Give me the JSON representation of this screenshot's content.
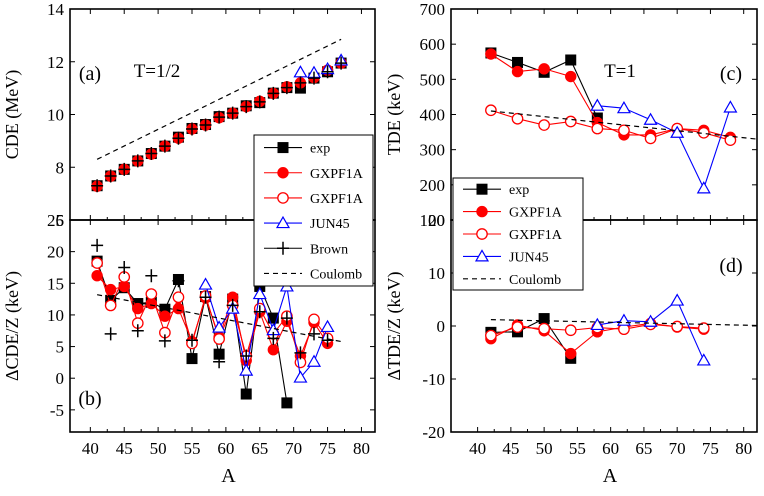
{
  "chart_data": [
    {
      "id": "a",
      "type": "scatter",
      "panel_label": "(a)",
      "annotation": "T=1/2",
      "ylabel": "CDE (MeV)",
      "xlabel": "",
      "xlim": [
        37,
        82
      ],
      "ylim": [
        6,
        14
      ],
      "xticks": [
        40,
        45,
        50,
        55,
        60,
        65,
        70,
        75,
        80
      ],
      "yticks": [
        6,
        8,
        10,
        12,
        14
      ],
      "show_xtick_labels": false,
      "series": [
        {
          "name": "exp",
          "color": "#000000",
          "marker": "square-filled",
          "line": "none",
          "x": [
            41,
            43,
            45,
            47,
            49,
            51,
            53,
            55,
            57,
            59,
            61,
            63,
            65,
            67,
            69,
            71,
            73,
            75,
            77
          ],
          "y": [
            7.3,
            7.67,
            7.92,
            8.24,
            8.52,
            8.8,
            9.14,
            9.47,
            9.62,
            9.92,
            10.05,
            10.33,
            10.45,
            10.81,
            11.02,
            11.0,
            11.38,
            11.62,
            11.95
          ]
        },
        {
          "name": "GXPF1A",
          "color": "#ff0000",
          "marker": "circle-filled",
          "line": "none",
          "x": [
            41,
            43,
            45,
            47,
            49,
            51,
            53,
            55,
            57,
            59,
            61,
            63,
            65,
            67,
            69,
            71,
            73,
            75,
            77
          ],
          "y": [
            7.28,
            7.66,
            7.92,
            8.24,
            8.5,
            8.8,
            9.1,
            9.45,
            9.6,
            9.88,
            10.05,
            10.3,
            10.5,
            10.8,
            11.05,
            11.2,
            11.4,
            11.68,
            11.95
          ]
        },
        {
          "name": "JUN45",
          "color": "#0000ff",
          "marker": "triangle-open",
          "line": "none",
          "x": [
            71,
            73,
            75,
            77
          ],
          "y": [
            11.6,
            11.58,
            11.72,
            12.05
          ]
        },
        {
          "name": "Brown",
          "color": "#000000",
          "marker": "plus",
          "line": "none",
          "x": [
            41,
            43,
            45,
            47,
            49,
            51,
            53,
            55,
            57,
            59,
            61,
            63,
            65,
            67,
            69,
            71,
            73,
            75,
            77
          ],
          "y": [
            7.3,
            7.67,
            7.92,
            8.24,
            8.52,
            8.8,
            9.1,
            9.45,
            9.6,
            9.9,
            10.05,
            10.3,
            10.48,
            10.8,
            11.02,
            11.2,
            11.38,
            11.62,
            11.95
          ]
        },
        {
          "name": "Coulomb",
          "color": "#000000",
          "marker": "none",
          "line": "dashed",
          "x": [
            41,
            77
          ],
          "y": [
            8.3,
            12.85
          ]
        }
      ]
    },
    {
      "id": "b",
      "type": "line",
      "panel_label": "(b)",
      "ylabel": "ΔCDE/Z  (keV)",
      "xlabel": "A",
      "xlim": [
        37,
        82
      ],
      "ylim": [
        -8.5,
        25
      ],
      "xticks": [
        40,
        45,
        50,
        55,
        60,
        65,
        70,
        75,
        80
      ],
      "yticks": [
        -5,
        0,
        5,
        10,
        15,
        20,
        25
      ],
      "show_xtick_labels": true,
      "legend": [
        "exp",
        "GXPF1A",
        "GXPF1A",
        "JUN45",
        "Brown",
        "Coulomb"
      ],
      "legend_position": "top-right",
      "series": [
        {
          "name": "exp",
          "color": "#000000",
          "marker": "square-filled",
          "line": "solid",
          "x": [
            41,
            43,
            45,
            47,
            49,
            51,
            53,
            55,
            57,
            59,
            61,
            63,
            65,
            67,
            69
          ],
          "y": [
            18.5,
            12.3,
            14.3,
            11.8,
            12.0,
            10.9,
            15.6,
            3.1,
            12.9,
            3.8,
            12.5,
            -2.5,
            14.5,
            9.5,
            -3.9
          ]
        },
        {
          "name": "GXPF1A",
          "color": "#ff0000",
          "marker": "circle-filled",
          "line": "solid",
          "x": [
            41,
            43,
            45,
            47,
            49,
            51,
            53,
            55,
            57,
            59,
            61,
            63,
            65,
            67,
            69,
            71,
            73,
            75
          ],
          "y": [
            16.2,
            14.0,
            14.5,
            11.0,
            11.8,
            9.8,
            11.0,
            5.8,
            12.7,
            6.5,
            12.8,
            2.8,
            10.5,
            4.5,
            9.0,
            3.5,
            8.8,
            5.5
          ]
        },
        {
          "name": "GXPF1A",
          "color": "#ff0000",
          "marker": "circle-open",
          "line": "solid",
          "x": [
            41,
            43,
            45,
            47,
            49,
            51,
            53,
            55,
            57,
            59,
            61,
            63,
            65,
            67,
            69,
            71,
            73,
            75
          ],
          "y": [
            18.2,
            11.5,
            16.0,
            8.7,
            13.3,
            7.2,
            12.8,
            5.5,
            13.0,
            6.2,
            11.5,
            3.5,
            11.0,
            7.0,
            9.8,
            2.5,
            9.3,
            6.3
          ]
        },
        {
          "name": "JUN45",
          "color": "#0000ff",
          "marker": "triangle-open",
          "line": "solid",
          "x": [
            57,
            59,
            61,
            63,
            65,
            67,
            69,
            71,
            73,
            75
          ],
          "y": [
            14.8,
            8.0,
            11.0,
            1.2,
            13.3,
            7.6,
            14.5,
            0.1,
            2.6,
            8.1
          ]
        },
        {
          "name": "Brown",
          "color": "#000000",
          "marker": "plus",
          "line": "none",
          "x": [
            41,
            43,
            45,
            47,
            49,
            51,
            53,
            55,
            57,
            59,
            61,
            63,
            65,
            67,
            69,
            71,
            73,
            75
          ],
          "y": [
            21.0,
            7.0,
            17.5,
            7.5,
            16.2,
            5.9,
            15.4,
            6.0,
            12.8,
            2.6,
            11.5,
            3.5,
            10.5,
            6.3,
            9.5,
            4.0,
            7.0,
            6.0
          ]
        },
        {
          "name": "Coulomb",
          "color": "#000000",
          "marker": "none",
          "line": "dashed",
          "x": [
            41,
            77
          ],
          "y": [
            13.2,
            5.8
          ]
        }
      ]
    },
    {
      "id": "c",
      "type": "line",
      "panel_label": "(c)",
      "annotation": "T=1",
      "ylabel": "TDE  (keV)",
      "xlabel": "",
      "xlim": [
        36,
        82
      ],
      "ylim": [
        100,
        700
      ],
      "xticks": [
        40,
        45,
        50,
        55,
        60,
        65,
        70,
        75,
        80
      ],
      "yticks": [
        100,
        200,
        300,
        400,
        500,
        600,
        700
      ],
      "show_xtick_labels": false,
      "series": [
        {
          "name": "exp",
          "color": "#000000",
          "marker": "square-filled",
          "line": "solid",
          "x": [
            42,
            46,
            50,
            54,
            58
          ],
          "y": [
            575,
            548,
            520,
            555,
            390
          ]
        },
        {
          "name": "GXPF1A",
          "color": "#ff0000",
          "marker": "circle-filled",
          "line": "solid",
          "x": [
            42,
            46,
            50,
            54,
            58,
            62,
            66,
            70,
            74,
            78
          ],
          "y": [
            572,
            522,
            530,
            508,
            377,
            342,
            342,
            360,
            355,
            335
          ]
        },
        {
          "name": "GXPF1A",
          "color": "#ff0000",
          "marker": "circle-open",
          "line": "solid",
          "x": [
            42,
            46,
            50,
            54,
            58,
            62,
            66,
            70,
            74,
            78
          ],
          "y": [
            412,
            388,
            370,
            380,
            360,
            355,
            332,
            360,
            348,
            327
          ]
        },
        {
          "name": "JUN45",
          "color": "#0000ff",
          "marker": "triangle-open",
          "line": "solid",
          "x": [
            58,
            62,
            66,
            70,
            74,
            78
          ],
          "y": [
            425,
            418,
            385,
            348,
            190,
            420
          ]
        },
        {
          "name": "Coulomb",
          "color": "#000000",
          "marker": "none",
          "line": "dashed",
          "x": [
            42,
            82
          ],
          "y": [
            410,
            330
          ]
        }
      ]
    },
    {
      "id": "d",
      "type": "line",
      "panel_label": "(d)",
      "ylabel": "ΔTDE/Z  (keV)",
      "xlabel": "A",
      "xlim": [
        36,
        82
      ],
      "ylim": [
        -20,
        20
      ],
      "xticks": [
        40,
        45,
        50,
        55,
        60,
        65,
        70,
        75,
        80
      ],
      "yticks": [
        -20,
        -10,
        0,
        10,
        20
      ],
      "show_xtick_labels": true,
      "legend": [
        "exp",
        "GXPF1A",
        "GXPF1A",
        "JUN45",
        "Coulomb"
      ],
      "legend_position": "top-left",
      "series": [
        {
          "name": "exp",
          "color": "#000000",
          "marker": "square-filled",
          "line": "solid",
          "x": [
            42,
            46,
            50,
            54
          ],
          "y": [
            -1.2,
            -1.1,
            1.4,
            -6.1
          ]
        },
        {
          "name": "GXPF1A",
          "color": "#ff0000",
          "marker": "circle-filled",
          "line": "solid",
          "x": [
            42,
            46,
            50,
            54,
            58,
            62,
            66,
            70,
            74
          ],
          "y": [
            -2.4,
            0.2,
            -0.9,
            -5.2,
            -1.1,
            -0.2,
            0.5,
            -0.2,
            -0.6
          ]
        },
        {
          "name": "GXPF1A",
          "color": "#ff0000",
          "marker": "circle-open",
          "line": "solid",
          "x": [
            42,
            46,
            50,
            54,
            58,
            62,
            66,
            70,
            74
          ],
          "y": [
            -1.8,
            -0.2,
            -0.5,
            -0.8,
            -0.3,
            -0.6,
            0.3,
            -0.1,
            -0.4
          ]
        },
        {
          "name": "JUN45",
          "color": "#0000ff",
          "marker": "triangle-open",
          "line": "solid",
          "x": [
            58,
            62,
            66,
            70,
            74
          ],
          "y": [
            0.2,
            1.0,
            0.8,
            4.8,
            -6.5
          ]
        },
        {
          "name": "Coulomb",
          "color": "#000000",
          "marker": "none",
          "line": "dashed",
          "x": [
            42,
            82
          ],
          "y": [
            1.2,
            0.1
          ]
        }
      ]
    }
  ]
}
